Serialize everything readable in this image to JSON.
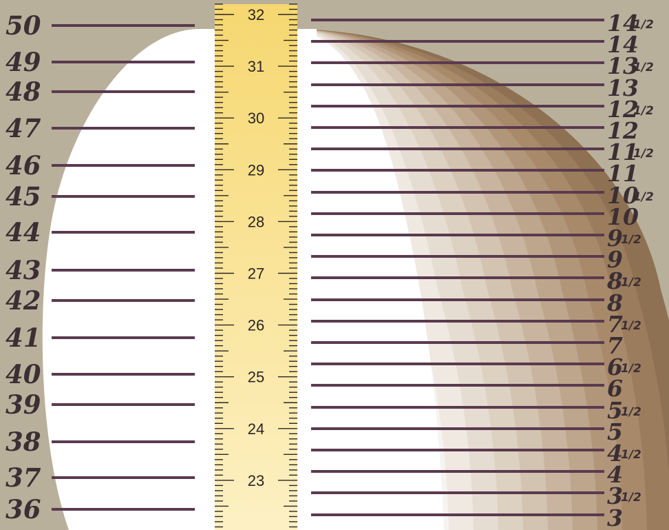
{
  "background_color": "#b9b09c",
  "line_color": "#5a3a4e",
  "label_color": "#3b2f34",
  "head_silhouette_color": "#ffffff",
  "tape_color_top": "#f6d770",
  "tape_color_bottom": "#fdf1c4",
  "shade_colors": [
    "#f6f4f1",
    "#efe9e2",
    "#e6ddd2",
    "#ddd1c2",
    "#d3c3b1",
    "#c9b59f",
    "#bda68c",
    "#b2967a",
    "#a88a6b",
    "#9b7d5e",
    "#8e7152"
  ],
  "left_scale_labels": [
    "50",
    "49",
    "48",
    "47",
    "46",
    "45",
    "44",
    "43",
    "42",
    "41",
    "40",
    "39",
    "38",
    "37",
    "36"
  ],
  "right_scale_labels": [
    {
      "whole": "14",
      "half": "1/2"
    },
    {
      "whole": "14",
      "half": ""
    },
    {
      "whole": "13",
      "half": "1/2"
    },
    {
      "whole": "13",
      "half": ""
    },
    {
      "whole": "12",
      "half": "1/2"
    },
    {
      "whole": "12",
      "half": ""
    },
    {
      "whole": "11",
      "half": "1/2"
    },
    {
      "whole": "11",
      "half": ""
    },
    {
      "whole": "10",
      "half": "1/2"
    },
    {
      "whole": "10",
      "half": ""
    },
    {
      "whole": "9",
      "half": "1/2"
    },
    {
      "whole": "9",
      "half": ""
    },
    {
      "whole": "8",
      "half": "1/2"
    },
    {
      "whole": "8",
      "half": ""
    },
    {
      "whole": "7",
      "half": "1/2"
    },
    {
      "whole": "7",
      "half": ""
    },
    {
      "whole": "6",
      "half": "1/2"
    },
    {
      "whole": "6",
      "half": ""
    },
    {
      "whole": "5",
      "half": "1/2"
    },
    {
      "whole": "5",
      "half": ""
    },
    {
      "whole": "4",
      "half": "1/2"
    },
    {
      "whole": "4",
      "half": ""
    },
    {
      "whole": "3",
      "half": "1/2"
    },
    {
      "whole": "3",
      "half": ""
    }
  ],
  "ruler_labels": [
    "32",
    "31",
    "30",
    "29",
    "28",
    "27",
    "26",
    "25",
    "24",
    "23"
  ]
}
